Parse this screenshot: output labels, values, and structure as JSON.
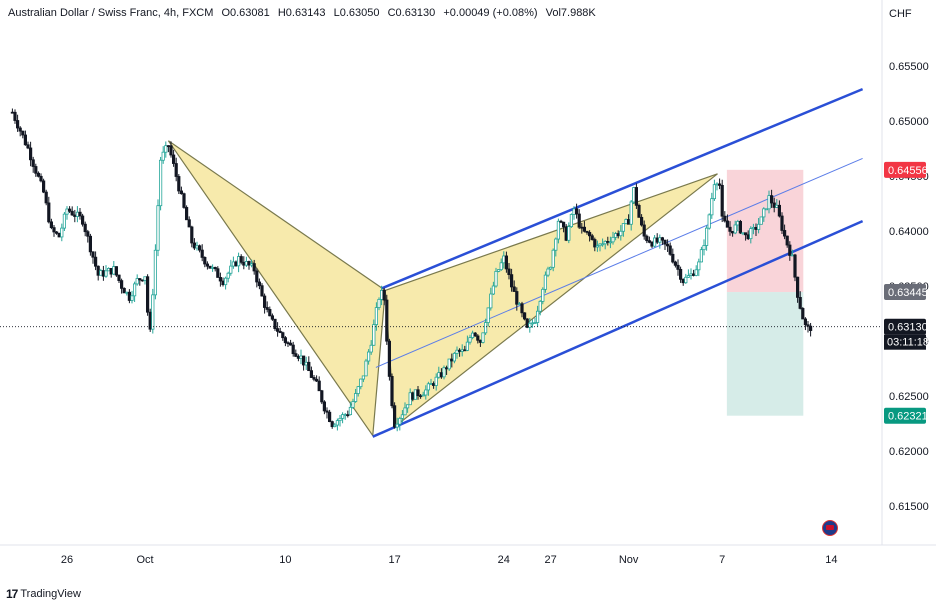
{
  "header": {
    "symbol": "Australian Dollar / Swiss Franc, 4h, FXCM",
    "open": "O0.63081",
    "high": "H0.63143",
    "low": "L0.63050",
    "close": "C0.63130",
    "change": "+0.00049 (+0.08%)",
    "volume": "Vol7.988K"
  },
  "currency": "CHF",
  "footer": {
    "brand": "TradingView"
  },
  "colors": {
    "up": "#26a69a",
    "channel": "#2a4fd6",
    "pattern_fill": "#f7e8a4",
    "stop_zone": "#f8cdd2",
    "target_zone": "#cfe9e4",
    "red_label": "#f23645",
    "green_label": "#089981",
    "dark_label": "#131722",
    "gray_label": "#6a6d78"
  },
  "chart_data": {
    "type": "candlestick",
    "ylim": [
      0.6115,
      0.6575
    ],
    "y_ticks": [
      "0.61500",
      "0.62000",
      "0.62500",
      "0.63000",
      "0.63500",
      "0.64000",
      "0.64500",
      "0.65000",
      "0.65500"
    ],
    "x_ticks": [
      {
        "label": "26",
        "day": -5
      },
      {
        "label": "Oct",
        "day": 0
      },
      {
        "label": "10",
        "day": 9
      },
      {
        "label": "17",
        "day": 16
      },
      {
        "label": "24",
        "day": 23
      },
      {
        "label": "27",
        "day": 26
      },
      {
        "label": "Nov",
        "day": 31
      },
      {
        "label": "7",
        "day": 37
      },
      {
        "label": "14",
        "day": 44
      }
    ],
    "price_close_path": [
      [
        -8.5,
        0.6508
      ],
      [
        -7.5,
        0.6475
      ],
      [
        -6.5,
        0.6435
      ],
      [
        -6,
        0.64
      ],
      [
        -5.5,
        0.6395
      ],
      [
        -5,
        0.642
      ],
      [
        -4.5,
        0.6415
      ],
      [
        -4,
        0.641
      ],
      [
        -3.5,
        0.6385
      ],
      [
        -3,
        0.636
      ],
      [
        -2,
        0.6365
      ],
      [
        -1.5,
        0.635
      ],
      [
        -1,
        0.634
      ],
      [
        -0.5,
        0.6355
      ],
      [
        0,
        0.636
      ],
      [
        0.3,
        0.63
      ],
      [
        0.7,
        0.639
      ],
      [
        1.0,
        0.6465
      ],
      [
        1.5,
        0.6478
      ],
      [
        2,
        0.645
      ],
      [
        2.5,
        0.642
      ],
      [
        3,
        0.639
      ],
      [
        4,
        0.637
      ],
      [
        5,
        0.6355
      ],
      [
        6,
        0.6375
      ],
      [
        7,
        0.6365
      ],
      [
        7.5,
        0.634
      ],
      [
        8,
        0.632
      ],
      [
        8.5,
        0.631
      ],
      [
        9,
        0.63
      ],
      [
        10,
        0.6285
      ],
      [
        11,
        0.626
      ],
      [
        11.5,
        0.624
      ],
      [
        12,
        0.6225
      ],
      [
        13,
        0.6235
      ],
      [
        13.5,
        0.625
      ],
      [
        14,
        0.627
      ],
      [
        14.5,
        0.63
      ],
      [
        15,
        0.634
      ],
      [
        15.3,
        0.6345
      ],
      [
        15.7,
        0.626
      ],
      [
        16,
        0.6225
      ],
      [
        16.5,
        0.6235
      ],
      [
        17,
        0.625
      ],
      [
        18,
        0.6255
      ],
      [
        19,
        0.627
      ],
      [
        20,
        0.629
      ],
      [
        20.5,
        0.629
      ],
      [
        21,
        0.631
      ],
      [
        21.5,
        0.63
      ],
      [
        22,
        0.633
      ],
      [
        22.5,
        0.636
      ],
      [
        23,
        0.6375
      ],
      [
        23.5,
        0.635
      ],
      [
        24,
        0.633
      ],
      [
        24.5,
        0.631
      ],
      [
        25,
        0.632
      ],
      [
        25.5,
        0.635
      ],
      [
        26,
        0.637
      ],
      [
        26.5,
        0.641
      ],
      [
        27,
        0.6395
      ],
      [
        27.5,
        0.642
      ],
      [
        28,
        0.64
      ],
      [
        28.5,
        0.6395
      ],
      [
        29,
        0.6385
      ],
      [
        29.5,
        0.639
      ],
      [
        30,
        0.6395
      ],
      [
        30.5,
        0.64
      ],
      [
        31,
        0.641
      ],
      [
        31.3,
        0.644
      ],
      [
        31.7,
        0.641
      ],
      [
        32,
        0.6395
      ],
      [
        32.5,
        0.639
      ],
      [
        33,
        0.639
      ],
      [
        33.5,
        0.6385
      ],
      [
        34,
        0.637
      ],
      [
        34.5,
        0.6355
      ],
      [
        35,
        0.636
      ],
      [
        35.5,
        0.637
      ],
      [
        36,
        0.64
      ],
      [
        36.5,
        0.6445
      ],
      [
        36.8,
        0.6448
      ],
      [
        37,
        0.641
      ],
      [
        37.5,
        0.64
      ],
      [
        38,
        0.6405
      ],
      [
        38.5,
        0.6395
      ],
      [
        39,
        0.64
      ],
      [
        39.5,
        0.641
      ],
      [
        40,
        0.643
      ],
      [
        40.5,
        0.642
      ],
      [
        41,
        0.6395
      ],
      [
        41.5,
        0.6375
      ],
      [
        41.8,
        0.6345
      ],
      [
        42.1,
        0.6325
      ],
      [
        42.4,
        0.631
      ],
      [
        42.7,
        0.6313
      ]
    ],
    "annotations": {
      "xabcd_pattern": {
        "X": [
          1.5,
          0.6482
        ],
        "A": [
          14.6,
          0.6214
        ],
        "B": [
          15.4,
          0.6346
        ],
        "C": [
          16.0,
          0.6222
        ],
        "D": [
          36.7,
          0.6452
        ]
      },
      "channel_upper": [
        [
          15.2,
          0.6348
        ],
        [
          46.0,
          0.6529
        ]
      ],
      "channel_lower": [
        [
          14.6,
          0.6213
        ],
        [
          46.0,
          0.6409
        ]
      ],
      "channel_mid": [
        [
          14.8,
          0.6276
        ],
        [
          46.0,
          0.6466
        ]
      ],
      "position_entry": 0.63445,
      "position_stop": 0.64556,
      "position_target": 0.62321,
      "position_x_range": [
        37.3,
        42.2
      ]
    },
    "price_labels": [
      {
        "value": 0.64556,
        "text": "0.64556",
        "kind": "stop"
      },
      {
        "value": 0.63445,
        "text": "0.63445",
        "kind": "entry"
      },
      {
        "value": 0.6313,
        "text": "0.63130",
        "kind": "last"
      },
      {
        "value": 0.62321,
        "text": "0.62321",
        "kind": "target"
      }
    ],
    "countdown": "03:11:18"
  }
}
